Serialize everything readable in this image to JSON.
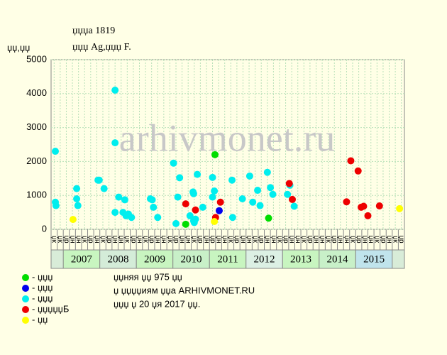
{
  "chart_data": {
    "type": "scatter",
    "title": "џџџа 1819",
    "subtitle": "џџџ Ag,џџџ F.",
    "y_label": "џџ,џџ",
    "watermark": "arhivmonet.ru",
    "xlim": [
      0,
      58
    ],
    "ylim": [
      0,
      5000
    ],
    "yticks": [
      0,
      1000,
      2000,
      3000,
      4000,
      5000
    ],
    "grid": true,
    "columns": [
      "џк",
      "џк",
      "џр",
      "џн",
      "џн",
      "џк",
      "џр",
      "џн",
      "џк",
      "џр",
      "џн",
      "џн",
      "џк",
      "џр",
      "џн",
      "џк",
      "џр",
      "џн",
      "џн",
      "џк",
      "џр",
      "џн",
      "џн",
      "џк",
      "џр",
      "џн",
      "џр",
      "џн",
      "џн",
      "џк",
      "џр",
      "џн",
      "џн",
      "џк",
      "џр",
      "џн",
      "џн",
      "џк",
      "џр",
      "џн",
      "џн",
      "џк",
      "џр",
      "џн",
      "џн",
      "џк",
      "џр",
      "џн",
      "џн",
      "џк",
      "џр",
      "џн",
      "џн",
      "џк",
      "џр",
      "џн",
      "џк",
      "џр"
    ],
    "years": [
      {
        "label": "2007",
        "start": 2,
        "end": 8,
        "color": "#c8f5c0"
      },
      {
        "label": "2008",
        "start": 8,
        "end": 14,
        "color": "#d4ecd8"
      },
      {
        "label": "2009",
        "start": 14,
        "end": 20,
        "color": "#c8f5c0"
      },
      {
        "label": "2010",
        "start": 20,
        "end": 26,
        "color": "#c8f0c8"
      },
      {
        "label": "2011",
        "start": 26,
        "end": 32,
        "color": "#c8f5c0"
      },
      {
        "label": "2012",
        "start": 32,
        "end": 38,
        "color": "#dcf0e4"
      },
      {
        "label": "2013",
        "start": 38,
        "end": 44,
        "color": "#c8f5c0"
      },
      {
        "label": "2014",
        "start": 44,
        "end": 50,
        "color": "#c8f0c8"
      },
      {
        "label": "2015",
        "start": 50,
        "end": 56,
        "color": "#c0e4ec"
      }
    ],
    "series": [
      {
        "name": "- џџџ",
        "color": "#00dd00",
        "x": [
          22.1,
          26.9,
          35.7
        ],
        "values": [
          150,
          2200,
          330
        ]
      },
      {
        "name": "- џџџ",
        "color": "#0000ee",
        "x": [
          27.6
        ],
        "values": [
          550
        ]
      },
      {
        "name": "- џџџ",
        "color": "#00eeee",
        "x": [
          0.7,
          0.7,
          0.8,
          4.2,
          4.2,
          4.4,
          7.7,
          7.9,
          8.7,
          10.5,
          10.5,
          10.5,
          11.1,
          11.8,
          12.1,
          12.3,
          12.7,
          13.2,
          16.3,
          16.6,
          16.8,
          17.5,
          20.1,
          20.5,
          20.8,
          21.1,
          22.8,
          23.3,
          23.4,
          23.4,
          23.5,
          23.7,
          24.0,
          24.9,
          26.5,
          26.5,
          26.8,
          29.7,
          29.8,
          31.4,
          32.6,
          33.1,
          33.9,
          34.3,
          35.5,
          36.0,
          36.4,
          38.8,
          39.2,
          39.9
        ],
        "values": [
          2300,
          800,
          700,
          1200,
          900,
          700,
          1450,
          1450,
          1200,
          4100,
          2550,
          500,
          950,
          500,
          870,
          400,
          450,
          350,
          900,
          870,
          650,
          350,
          1950,
          170,
          950,
          1520,
          400,
          1100,
          1050,
          250,
          200,
          300,
          1620,
          650,
          1530,
          950,
          1130,
          1450,
          350,
          900,
          1570,
          800,
          1150,
          700,
          1680,
          1230,
          1030,
          1030,
          1300,
          680
        ]
      },
      {
        "name": "- џџџџџБ",
        "color": "#ee0000",
        "x": [
          22.1,
          23.7,
          27.0,
          27.8,
          39.1,
          39.6,
          48.5,
          49.2,
          50.4,
          50.9,
          51.3,
          52.0,
          53.9
        ],
        "values": [
          750,
          570,
          350,
          800,
          1350,
          880,
          810,
          2020,
          1720,
          650,
          680,
          400,
          690
        ]
      },
      {
        "name": "- џџ",
        "color": "#ffff00",
        "x": [
          3.6,
          26.8,
          57.2
        ],
        "values": [
          290,
          230,
          610
        ]
      }
    ],
    "notes": [
      "џџняя џџ 975 џџ",
      "џ џџџџиям џџа ARHIVMONET.RU",
      "џџџ џ 20 џя 2017 џџ."
    ]
  }
}
